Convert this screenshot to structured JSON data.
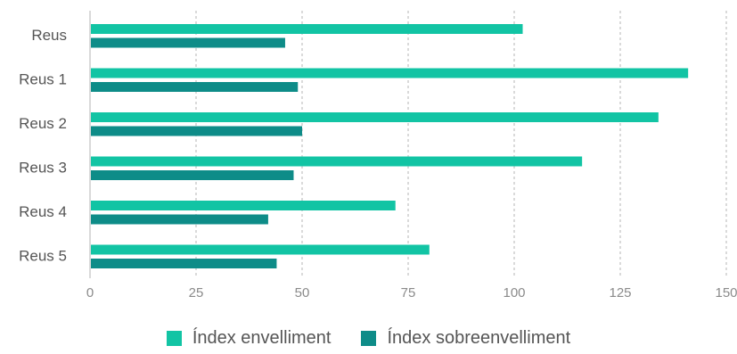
{
  "chart_data": {
    "type": "bar",
    "orientation": "horizontal",
    "categories": [
      "Reus",
      "Reus 1",
      "Reus 2",
      "Reus 3",
      "Reus 4",
      "Reus 5"
    ],
    "series": [
      {
        "name": "Índex envelliment",
        "color": "#12C4A4",
        "values": [
          102,
          141,
          134,
          116,
          72,
          80
        ]
      },
      {
        "name": "Índex sobreenvelliment",
        "color": "#0E8C88",
        "values": [
          46,
          49,
          50,
          48,
          42,
          44
        ]
      }
    ],
    "xlim": [
      0,
      150
    ],
    "xticks": [
      0,
      25,
      50,
      75,
      100,
      125,
      150
    ],
    "grid": "vertical dotted",
    "legend_position": "bottom",
    "title": "",
    "xlabel": "",
    "ylabel": ""
  }
}
